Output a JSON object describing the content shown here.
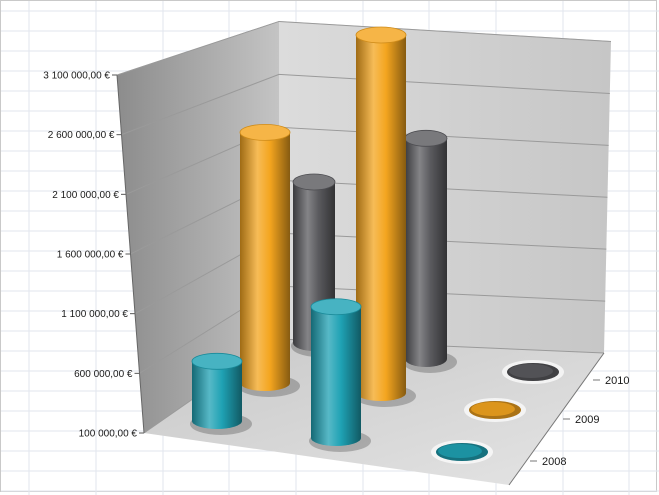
{
  "chart_data": {
    "type": "bar",
    "style": "3d-cylinder",
    "grid": true,
    "categories": [
      "",
      ""
    ],
    "y_ticks": [
      "100 000,00 €",
      "600 000,00 €",
      "1 100 000,00 €",
      "1 600 000,00 €",
      "2 100 000,00 €",
      "2 600 000,00 €",
      "3 100 000,00 €"
    ],
    "ylim": [
      100000,
      3100000
    ],
    "series": [
      {
        "name": "2010",
        "color": "#5b5b5f",
        "values": [
          1600000,
          2100000
        ]
      },
      {
        "name": "2009",
        "color": "#f4a51f",
        "values": [
          2200000,
          3100000
        ]
      },
      {
        "name": "2008",
        "color": "#1fa2b4",
        "values": [
          600000,
          1200000
        ]
      }
    ]
  }
}
